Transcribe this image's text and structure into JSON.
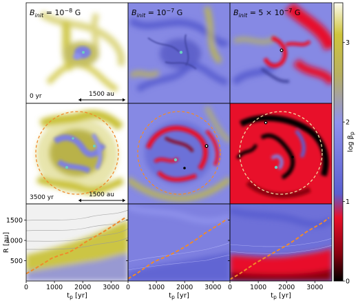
{
  "figure": {
    "columns": [
      {
        "title_prefix": "B",
        "title_sub": "init",
        "title_value": " = 10",
        "title_exp": "−8",
        "title_unit": " G"
      },
      {
        "title_prefix": "B",
        "title_sub": "init",
        "title_value": " = 10",
        "title_exp": "−7",
        "title_unit": " G"
      },
      {
        "title_prefix": "B",
        "title_sub": "init",
        "title_value": " = 5 × 10",
        "title_exp": "−7",
        "title_unit": " G"
      }
    ],
    "row_time_labels": [
      "0 yr",
      "3500 yr"
    ],
    "scale_bar_label": "1500 au",
    "colors": {
      "low_beta": "#c8c030",
      "mid_beta": "#7e80e0",
      "high_beta": "#e8102a",
      "very_high_beta": "#000000",
      "ring": "#f08a2a",
      "bg_white": "#ffffff"
    }
  },
  "chart_data": {
    "type": "heatmap",
    "colorbar": {
      "label_main": "log β",
      "label_sub": "p",
      "ticks": [
        "0",
        "1",
        "2",
        "3"
      ],
      "range": [
        0,
        3.5
      ],
      "stops": [
        {
          "v": 0.0,
          "color": "#000000"
        },
        {
          "v": 0.35,
          "color": "#8b0010"
        },
        {
          "v": 0.8,
          "color": "#e8102a"
        },
        {
          "v": 1.1,
          "color": "#5a5fd0"
        },
        {
          "v": 2.0,
          "color": "#8f92ec"
        },
        {
          "v": 2.6,
          "color": "#b8b060"
        },
        {
          "v": 3.1,
          "color": "#cfc43a"
        },
        {
          "v": 3.5,
          "color": "#fbfbf0"
        }
      ]
    },
    "bottom_panels": {
      "xlabel_main": "t",
      "xlabel_sub": "p",
      "xlabel_unit": " [yr]",
      "ylabel": "R [au]",
      "xlim": [
        0,
        3600
      ],
      "ylim": [
        0,
        1900
      ],
      "xticks": [
        "0",
        "1000",
        "2000",
        "3000"
      ],
      "yticks": [
        "500",
        "1000",
        "1500"
      ],
      "ring_curves": [
        {
          "x": [
            0,
            300,
            600,
            900,
            1200,
            1500,
            1800,
            2100,
            2400,
            2700,
            3000,
            3300,
            3500
          ],
          "y": [
            180,
            300,
            430,
            560,
            640,
            700,
            820,
            960,
            1080,
            1200,
            1330,
            1470,
            1560
          ]
        },
        {
          "x": [
            0,
            300,
            600,
            900,
            1200,
            1500,
            1800,
            2100,
            2400,
            2700,
            3000,
            3300,
            3500
          ],
          "y": [
            60,
            180,
            330,
            470,
            560,
            650,
            760,
            880,
            1020,
            1170,
            1300,
            1430,
            1530
          ]
        },
        {
          "x": [
            0,
            300,
            600,
            900,
            1200,
            1500,
            1800,
            2100,
            2400,
            2700,
            3000,
            3300,
            3500
          ],
          "y": [
            40,
            160,
            300,
            440,
            560,
            680,
            800,
            920,
            1060,
            1210,
            1330,
            1450,
            1560
          ]
        }
      ]
    }
  }
}
